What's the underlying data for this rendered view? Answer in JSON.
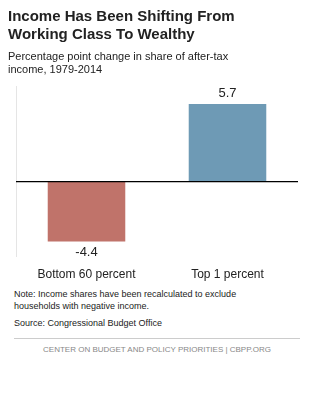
{
  "chart_data": {
    "type": "bar",
    "title": "Income Has Been Shifting From\nWorking Class To Wealthy",
    "subtitle": "Percentage point change in share of after-tax\nincome, 1979-2014",
    "categories": [
      "Bottom 60 percent",
      "Top 1 percent"
    ],
    "values": [
      -4.4,
      5.7
    ],
    "colors": [
      "#c0736a",
      "#6e9ab5"
    ],
    "data_labels": true,
    "ylim": [
      -5.5,
      7.0
    ],
    "grid": false,
    "tick_labels": "x",
    "note": "Note: Income shares have been recalculated to exclude\nhouseholds with negative income.",
    "source": "Source: Congressional Budget Office",
    "footer": "CENTER ON BUDGET AND POLICY PRIORITIES | CBPP.ORG"
  }
}
